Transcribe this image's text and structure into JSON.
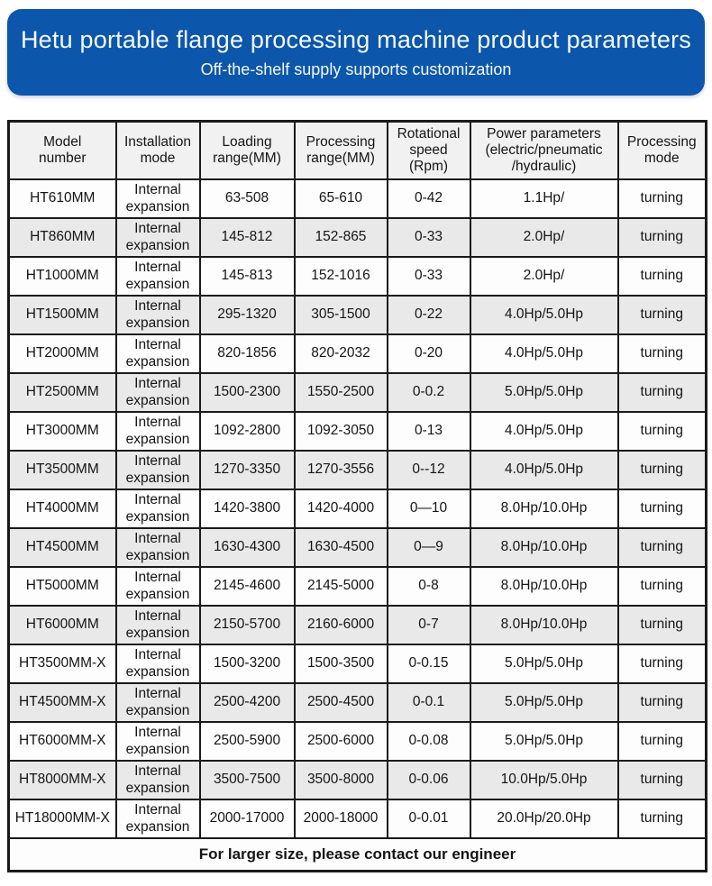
{
  "banner": {
    "title": "Hetu portable flange processing machine product parameters",
    "subtitle": "Off-the-shelf supply supports customization"
  },
  "colors": {
    "banner_blue": "#0c56ab",
    "banner_text": "#f4faff",
    "header_bg": "#f1f1f1",
    "stripe_bg": "#e9e9e9",
    "border": "#1a1a1a"
  },
  "table": {
    "columns": [
      "Model\nnumber",
      "Installation\nmode",
      "Loading\nrange(MM)",
      "Processing\nrange(MM)",
      "Rotational\nspeed\n(Rpm)",
      "Power parameters\n(electric/pneumatic\n/hydraulic)",
      "Processing\nmode"
    ],
    "rows": [
      [
        "HT610MM",
        "Internal\nexpansion",
        "63-508",
        "65-610",
        "0-42",
        "1.1Hp/",
        "turning"
      ],
      [
        "HT860MM",
        "Internal\nexpansion",
        "145-812",
        "152-865",
        "0-33",
        "2.0Hp/",
        "turning"
      ],
      [
        "HT1000MM",
        "Internal\nexpansion",
        "145-813",
        "152-1016",
        "0-33",
        "2.0Hp/",
        "turning"
      ],
      [
        "HT1500MM",
        "Internal\nexpansion",
        "295-1320",
        "305-1500",
        "0-22",
        "4.0Hp/5.0Hp",
        "turning"
      ],
      [
        "HT2000MM",
        "Internal\nexpansion",
        "820-1856",
        "820-2032",
        "0-20",
        "4.0Hp/5.0Hp",
        "turning"
      ],
      [
        "HT2500MM",
        "Internal\nexpansion",
        "1500-2300",
        "1550-2500",
        "0-0.2",
        "5.0Hp/5.0Hp",
        "turning"
      ],
      [
        "HT3000MM",
        "Internal\nexpansion",
        "1092-2800",
        "1092-3050",
        "0-13",
        "4.0Hp/5.0Hp",
        "turning"
      ],
      [
        "HT3500MM",
        "Internal\nexpansion",
        "1270-3350",
        "1270-3556",
        "0--12",
        "4.0Hp/5.0Hp",
        "turning"
      ],
      [
        "HT4000MM",
        "Internal\nexpansion",
        "1420-3800",
        "1420-4000",
        "0—10",
        "8.0Hp/10.0Hp",
        "turning"
      ],
      [
        "HT4500MM",
        "Internal\nexpansion",
        "1630-4300",
        "1630-4500",
        "0—9",
        "8.0Hp/10.0Hp",
        "turning"
      ],
      [
        "HT5000MM",
        "Internal\nexpansion",
        "2145-4600",
        "2145-5000",
        "0-8",
        "8.0Hp/10.0Hp",
        "turning"
      ],
      [
        "HT6000MM",
        "Internal\nexpansion",
        "2150-5700",
        "2160-6000",
        "0-7",
        "8.0Hp/10.0Hp",
        "turning"
      ],
      [
        "HT3500MM-X",
        "Internal\nexpansion",
        "1500-3200",
        "1500-3500",
        "0-0.15",
        "5.0Hp/5.0Hp",
        "turning"
      ],
      [
        "HT4500MM-X",
        "Internal\nexpansion",
        "2500-4200",
        "2500-4500",
        "0-0.1",
        "5.0Hp/5.0Hp",
        "turning"
      ],
      [
        "HT6000MM-X",
        "Internal\nexpansion",
        "2500-5900",
        "2500-6000",
        "0-0.08",
        "5.0Hp/5.0Hp",
        "turning"
      ],
      [
        "HT8000MM-X",
        "Internal\nexpansion",
        "3500-7500",
        "3500-8000",
        "0-0.06",
        "10.0Hp/5.0Hp",
        "turning"
      ],
      [
        "HT18000MM-X",
        "Internal\nexpansion",
        "2000-17000",
        "2000-18000",
        "0-0.01",
        "20.0Hp/20.0Hp",
        "turning"
      ]
    ],
    "footer": "For larger size, please contact our engineer"
  }
}
